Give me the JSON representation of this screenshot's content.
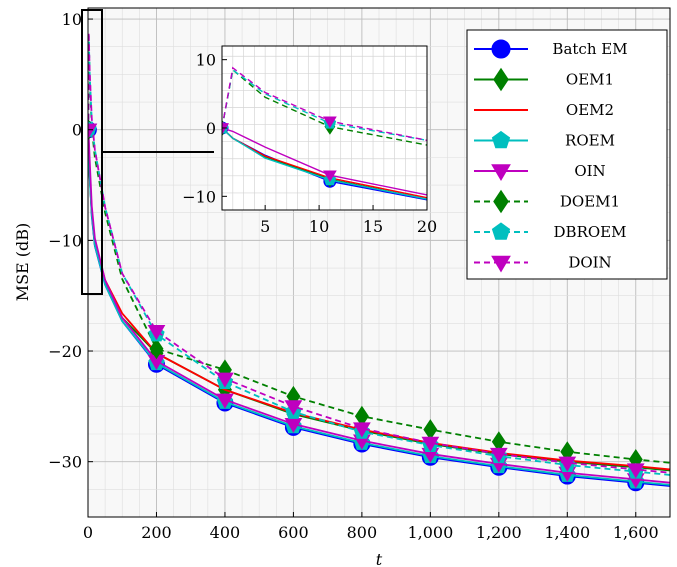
{
  "chart_data": {
    "type": "line",
    "xlabel": "t",
    "ylabel": "MSE (dB)",
    "xlim": [
      0,
      1700
    ],
    "ylim": [
      -35,
      11
    ],
    "xticks": [
      0,
      200,
      400,
      600,
      800,
      1000,
      1200,
      1400,
      1600
    ],
    "xtick_labels": [
      "0",
      "200",
      "400",
      "600",
      "800",
      "1,000",
      "1,200",
      "1,400",
      "1,600"
    ],
    "yticks": [
      10,
      0,
      -10,
      -20,
      -30
    ],
    "ytick_labels": [
      "10",
      "0",
      "−10",
      "−20",
      "−30"
    ],
    "grid": true,
    "legend_position": "top-right",
    "series": [
      {
        "name": "Batch EM",
        "color": "#0000ff",
        "dash": "solid",
        "marker": "circle",
        "x": [
          1,
          2,
          5,
          11,
          20,
          50,
          100,
          200,
          400,
          600,
          800,
          1000,
          1200,
          1400,
          1600,
          1700
        ],
        "y": [
          0,
          -1.5,
          -4,
          -7.8,
          -10.5,
          -14,
          -17.3,
          -21.2,
          -24.7,
          -26.9,
          -28.4,
          -29.6,
          -30.5,
          -31.3,
          -31.9,
          -32.2
        ]
      },
      {
        "name": "OEM1",
        "color": "#008000",
        "dash": "solid",
        "marker": "diamond",
        "x": [
          1,
          2,
          5,
          11,
          20,
          50,
          100,
          200,
          400,
          600,
          800,
          1000,
          1200,
          1400,
          1600,
          1700
        ],
        "y": [
          0,
          -1.5,
          -4.2,
          -7.5,
          -10.4,
          -13.8,
          -17,
          -20.2,
          -23.5,
          -25.7,
          -27.2,
          -28.4,
          -29.3,
          -30,
          -30.5,
          -30.8
        ]
      },
      {
        "name": "OEM2",
        "color": "#ff0000",
        "dash": "solid",
        "marker": "none",
        "x": [
          1,
          2,
          5,
          11,
          20,
          50,
          100,
          200,
          400,
          600,
          800,
          1000,
          1200,
          1400,
          1600,
          1700
        ],
        "y": [
          0,
          -1.5,
          -4.1,
          -7.3,
          -10.2,
          -13.6,
          -16.6,
          -20.2,
          -23.5,
          -25.6,
          -27.1,
          -28.3,
          -29.2,
          -29.9,
          -30.4,
          -30.7
        ]
      },
      {
        "name": "ROEM",
        "color": "#00bfbf",
        "dash": "solid",
        "marker": "pentagon",
        "x": [
          1,
          2,
          5,
          11,
          20,
          50,
          100,
          200,
          400,
          600,
          800,
          1000,
          1200,
          1400,
          1600,
          1700
        ],
        "y": [
          0,
          -1.5,
          -4.4,
          -7.6,
          -10.4,
          -14,
          -17.3,
          -21.1,
          -24.6,
          -26.8,
          -28.3,
          -29.5,
          -30.4,
          -31.2,
          -31.8,
          -32.1
        ]
      },
      {
        "name": "OIN",
        "color": "#bf00bf",
        "dash": "solid",
        "marker": "triangle-down",
        "x": [
          1,
          2,
          5,
          11,
          20,
          50,
          100,
          200,
          400,
          600,
          800,
          1000,
          1200,
          1400,
          1600,
          1700
        ],
        "y": [
          0,
          -0.5,
          -2.8,
          -6.9,
          -9.8,
          -13.6,
          -17,
          -20.9,
          -24.4,
          -26.6,
          -28.1,
          -29.3,
          -30.2,
          -31,
          -31.6,
          -31.9
        ]
      },
      {
        "name": "DOEM1",
        "color": "#008000",
        "dash": "dashed",
        "marker": "diamond",
        "x": [
          1,
          2,
          5,
          11,
          20,
          50,
          100,
          200,
          400,
          600,
          800,
          1000,
          1200,
          1400,
          1600,
          1700
        ],
        "y": [
          0,
          8.5,
          4.5,
          0.2,
          -2.5,
          -7.5,
          -13.5,
          -19.8,
          -21.7,
          -24.1,
          -25.9,
          -27.1,
          -28.2,
          -29.1,
          -29.8,
          -30.1
        ]
      },
      {
        "name": "DBROEM",
        "color": "#00bfbf",
        "dash": "dashed",
        "marker": "pentagon",
        "x": [
          1,
          2,
          5,
          11,
          20,
          50,
          100,
          200,
          400,
          600,
          800,
          1000,
          1200,
          1400,
          1600,
          1700
        ],
        "y": [
          0,
          8.5,
          5,
          0.7,
          -1.8,
          -7,
          -13,
          -18.5,
          -22.8,
          -25.5,
          -27.3,
          -28.5,
          -29.5,
          -30.3,
          -30.9,
          -31.2
        ]
      },
      {
        "name": "DOIN",
        "color": "#bf00bf",
        "dash": "dashed",
        "marker": "triangle-down",
        "x": [
          1,
          2,
          5,
          11,
          20,
          50,
          100,
          200,
          400,
          600,
          800,
          1000,
          1200,
          1400,
          1600,
          1700
        ],
        "y": [
          0,
          8.8,
          5.2,
          1.0,
          -1.8,
          -7,
          -13,
          -18.2,
          -22.5,
          -25,
          -27,
          -28.3,
          -29.3,
          -30.1,
          -30.7,
          -31
        ]
      }
    ],
    "inset": {
      "xlim": [
        1,
        20
      ],
      "ylim": [
        -12,
        12
      ],
      "xticks": [
        5,
        10,
        15,
        20
      ],
      "xtick_labels": [
        "5",
        "10",
        "15",
        "20"
      ],
      "yticks": [
        10,
        0,
        -10
      ],
      "ytick_labels": [
        "10",
        "0",
        "−10"
      ]
    }
  }
}
